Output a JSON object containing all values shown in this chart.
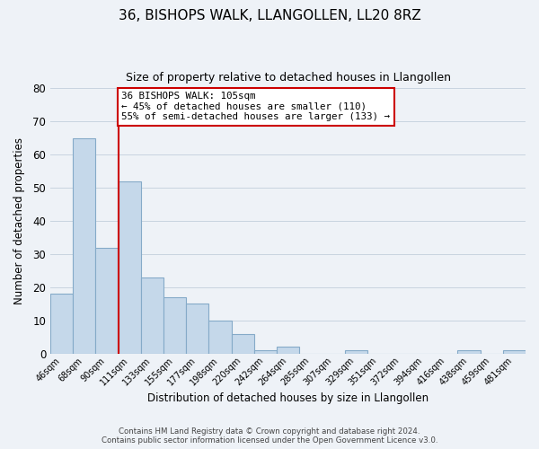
{
  "title": "36, BISHOPS WALK, LLANGOLLEN, LL20 8RZ",
  "subtitle": "Size of property relative to detached houses in Llangollen",
  "xlabel": "Distribution of detached houses by size in Llangollen",
  "ylabel": "Number of detached properties",
  "bin_labels": [
    "46sqm",
    "68sqm",
    "90sqm",
    "111sqm",
    "133sqm",
    "155sqm",
    "177sqm",
    "198sqm",
    "220sqm",
    "242sqm",
    "264sqm",
    "285sqm",
    "307sqm",
    "329sqm",
    "351sqm",
    "372sqm",
    "394sqm",
    "416sqm",
    "438sqm",
    "459sqm",
    "481sqm"
  ],
  "bar_heights": [
    18,
    65,
    32,
    52,
    23,
    17,
    15,
    10,
    6,
    1,
    2,
    0,
    0,
    1,
    0,
    0,
    0,
    0,
    1,
    0,
    1
  ],
  "bar_color": "#c5d8ea",
  "bar_edge_color": "#85aac8",
  "grid_color": "#c8d4e0",
  "background_color": "#eef2f7",
  "property_line_x": 3.0,
  "property_line_color": "#cc0000",
  "annotation_text": "36 BISHOPS WALK: 105sqm\n← 45% of detached houses are smaller (110)\n55% of semi-detached houses are larger (133) →",
  "annotation_box_color": "#ffffff",
  "annotation_box_edge": "#cc0000",
  "ylim": [
    0,
    80
  ],
  "yticks": [
    0,
    10,
    20,
    30,
    40,
    50,
    60,
    70,
    80
  ],
  "footer_line1": "Contains HM Land Registry data © Crown copyright and database right 2024.",
  "footer_line2": "Contains public sector information licensed under the Open Government Licence v3.0."
}
